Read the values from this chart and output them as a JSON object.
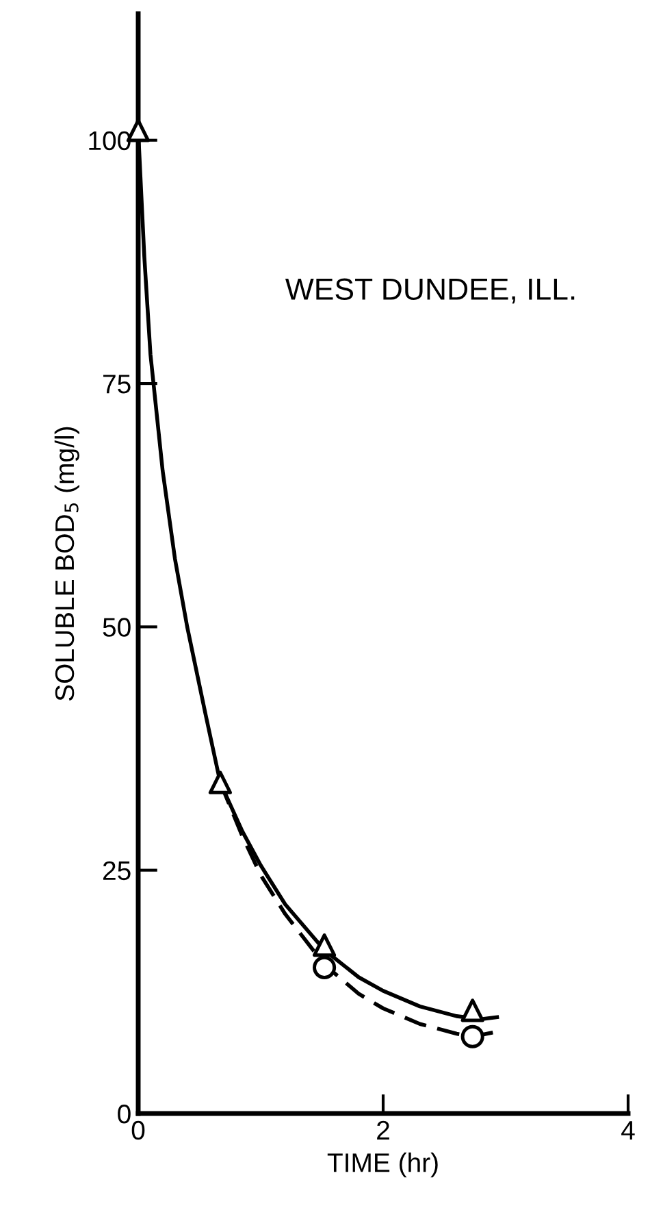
{
  "chart_data": {
    "type": "line",
    "xlabel": "TIME (hr)",
    "ylabel": "SOLUBLE BOD$_{5}$ (mg/l)",
    "annotations": [
      "WEST DUNDEE, ILL."
    ],
    "xlim": [
      0,
      4
    ],
    "xticks": [
      0,
      2,
      4
    ],
    "ylim": [
      0,
      113
    ],
    "yticks": [
      0,
      25,
      50,
      75,
      100
    ],
    "grid": false,
    "legend": false,
    "series": [
      {
        "color": "#000000",
        "line_style": "solid",
        "marker": "none",
        "x": [
          0,
          0.05,
          0.1,
          0.2,
          0.3,
          0.4,
          0.55,
          0.67,
          0.85,
          1.0,
          1.2,
          1.52,
          1.8,
          2.0,
          2.3,
          2.6,
          2.8,
          2.93
        ],
        "values": [
          101,
          88,
          78,
          66,
          57,
          50,
          41,
          34,
          29,
          25.5,
          21.5,
          16.8,
          14,
          12.6,
          11,
          10,
          9.7,
          9.9
        ]
      },
      {
        "color": "#000000",
        "line_style": "dashed",
        "marker": "none",
        "x": [
          0.67,
          0.85,
          1.0,
          1.2,
          1.52,
          1.8,
          2.0,
          2.3,
          2.6,
          2.73,
          2.93
        ],
        "values": [
          34,
          28.5,
          24.5,
          20.5,
          15.3,
          12.3,
          10.8,
          9.2,
          8.2,
          7.9,
          8.4
        ]
      },
      {
        "type": "scatter",
        "color": "#000000",
        "marker": "triangle",
        "x": [
          0,
          0.67,
          1.52,
          2.73
        ],
        "values": [
          101,
          34,
          17.3,
          10.6
        ]
      },
      {
        "type": "scatter",
        "color": "#000000",
        "marker": "circle",
        "x": [
          1.52,
          2.73
        ],
        "values": [
          15,
          7.9
        ]
      }
    ]
  }
}
